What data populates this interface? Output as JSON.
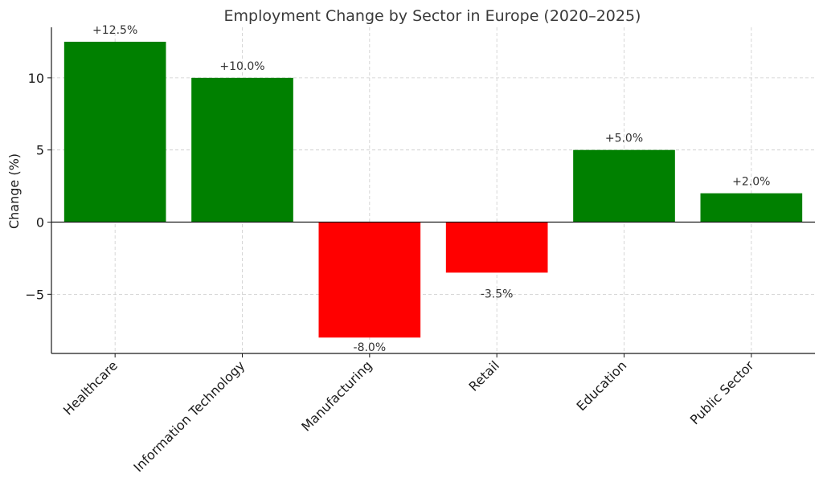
{
  "chart_data": {
    "type": "bar",
    "title": "Employment Change by Sector in Europe (2020–2025)",
    "xlabel": "",
    "ylabel": "Change (%)",
    "categories": [
      "Healthcare",
      "Information Technology",
      "Manufacturing",
      "Retail",
      "Education",
      "Public Sector"
    ],
    "values": [
      12.5,
      10.0,
      -8.0,
      -3.5,
      5.0,
      2.0
    ],
    "data_labels": [
      "+12.5%",
      "+10.0%",
      "-8.0%",
      "-3.5%",
      "+5.0%",
      "+2.0%"
    ],
    "ylim": [
      -9.1,
      13.5
    ],
    "yticks": [
      -5,
      0,
      5,
      10
    ],
    "ytick_labels": [
      "−5",
      "0",
      "5",
      "10"
    ],
    "grid": true,
    "colors": {
      "positive": "#008000",
      "negative": "#ff0000"
    }
  }
}
